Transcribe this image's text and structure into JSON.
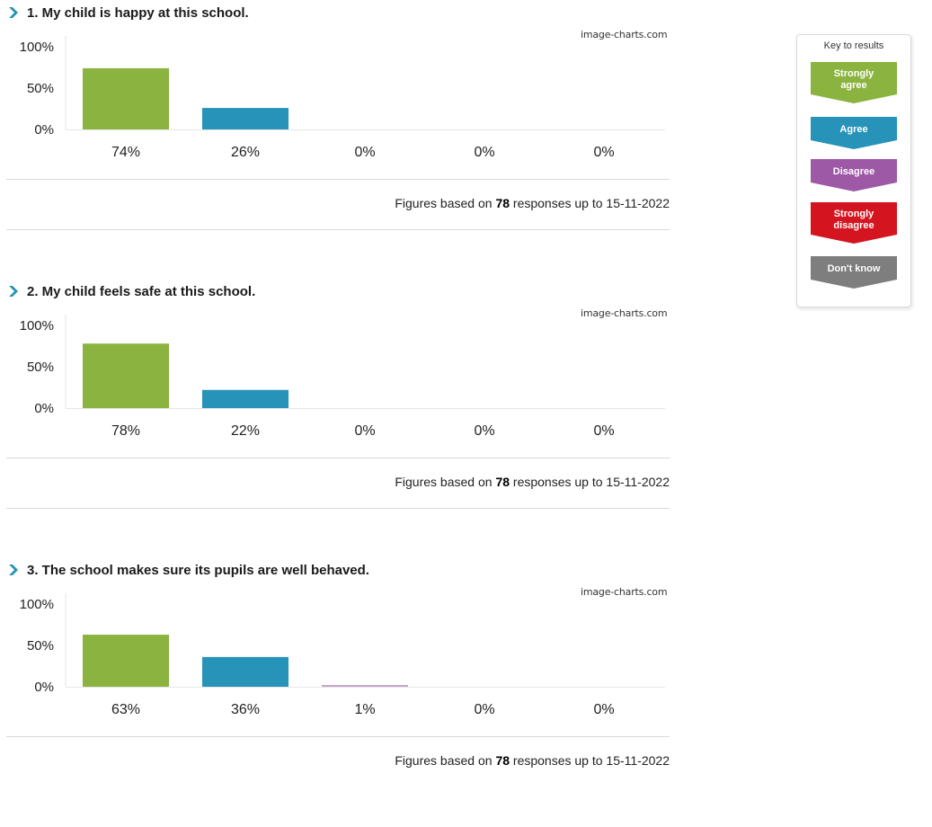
{
  "key": {
    "title": "Key to results",
    "items": [
      {
        "label": "Strongly agree",
        "line1": "Strongly",
        "line2": "agree",
        "color": "#8ab43f"
      },
      {
        "label": "Agree",
        "line1": "Agree",
        "line2": "",
        "color": "#2793b9"
      },
      {
        "label": "Disagree",
        "line1": "Disagree",
        "line2": "",
        "color": "#9e59a6"
      },
      {
        "label": "Strongly disagree",
        "line1": "Strongly",
        "line2": "disagree",
        "color": "#d4151f"
      },
      {
        "label": "Don't know",
        "line1": "Don't know",
        "line2": "",
        "color": "#7e7e7e"
      }
    ]
  },
  "questions": [
    {
      "title": "1. My child is happy at this school.",
      "watermark": "image-charts.com",
      "figures": {
        "prefix": "Figures based on",
        "count": "78",
        "suffix": "responses up to 15-11-2022"
      }
    },
    {
      "title": "2. My child feels safe at this school.",
      "watermark": "image-charts.com",
      "figures": {
        "prefix": "Figures based on",
        "count": "78",
        "suffix": "responses up to 15-11-2022"
      }
    },
    {
      "title": "3. The school makes sure its pupils are well behaved.",
      "watermark": "image-charts.com",
      "figures": {
        "prefix": "Figures based on",
        "count": "78",
        "suffix": "responses up to 15-11-2022"
      }
    }
  ],
  "chart_data": [
    {
      "type": "bar",
      "categories": [
        "Strongly agree",
        "Agree",
        "Disagree",
        "Strongly disagree",
        "Don't know"
      ],
      "values": [
        74,
        26,
        0,
        0,
        0
      ],
      "value_labels": [
        "74%",
        "26%",
        "0%",
        "0%",
        "0%"
      ],
      "colors": [
        "#8ab43f",
        "#2793b9",
        "#9e59a6",
        "#d4151f",
        "#7e7e7e"
      ],
      "yticks": [
        "100%",
        "50%",
        "0%"
      ],
      "ylim": [
        0,
        100
      ],
      "title": "1. My child is happy at this school."
    },
    {
      "type": "bar",
      "categories": [
        "Strongly agree",
        "Agree",
        "Disagree",
        "Strongly disagree",
        "Don't know"
      ],
      "values": [
        78,
        22,
        0,
        0,
        0
      ],
      "value_labels": [
        "78%",
        "22%",
        "0%",
        "0%",
        "0%"
      ],
      "colors": [
        "#8ab43f",
        "#2793b9",
        "#9e59a6",
        "#d4151f",
        "#7e7e7e"
      ],
      "yticks": [
        "100%",
        "50%",
        "0%"
      ],
      "ylim": [
        0,
        100
      ],
      "title": "2. My child feels safe at this school."
    },
    {
      "type": "bar",
      "categories": [
        "Strongly agree",
        "Agree",
        "Disagree",
        "Strongly disagree",
        "Don't know"
      ],
      "values": [
        63,
        36,
        1,
        0,
        0
      ],
      "value_labels": [
        "63%",
        "36%",
        "1%",
        "0%",
        "0%"
      ],
      "colors": [
        "#8ab43f",
        "#2793b9",
        "#9e59a6",
        "#d4151f",
        "#7e7e7e"
      ],
      "yticks": [
        "100%",
        "50%",
        "0%"
      ],
      "ylim": [
        0,
        100
      ],
      "title": "3. The school makes sure its pupils are well behaved."
    }
  ]
}
